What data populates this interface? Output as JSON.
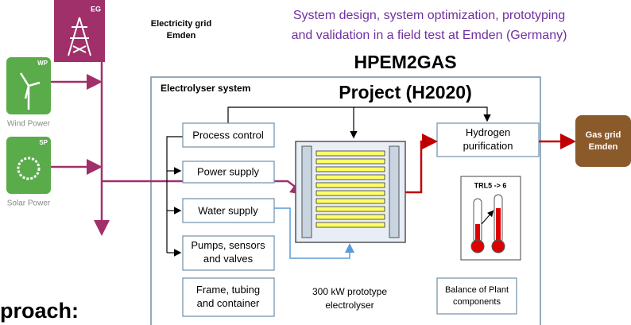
{
  "grid_icon": {
    "code": "EG",
    "label": [
      "Electricity grid",
      "Emden"
    ]
  },
  "header": {
    "subtitle": [
      "System design, system optimization, prototyping",
      "and validation in a field test at Emden (Germany)"
    ],
    "title": [
      "HPEM2GAS",
      "Project (H2020)"
    ]
  },
  "sources": [
    {
      "code": "WP",
      "label": "Wind Power"
    },
    {
      "code": "SP",
      "label": "Solar Power"
    }
  ],
  "system": {
    "title": "Electrolyser system",
    "boxes": [
      [
        "Process control"
      ],
      [
        "Power supply"
      ],
      [
        "Water supply"
      ],
      [
        "Pumps, sensors",
        "and valves"
      ],
      [
        "Frame, tubing",
        "and container"
      ]
    ],
    "stack_label": [
      "300 kW prototype",
      "electrolyser"
    ],
    "purification": [
      "Hydrogen",
      "purification"
    ],
    "trl": "TRL5 -> 6",
    "bop": [
      "Balance of Plant",
      "components"
    ]
  },
  "gas_grid": [
    "Gas grid",
    "Emden"
  ],
  "footer": "proach:"
}
